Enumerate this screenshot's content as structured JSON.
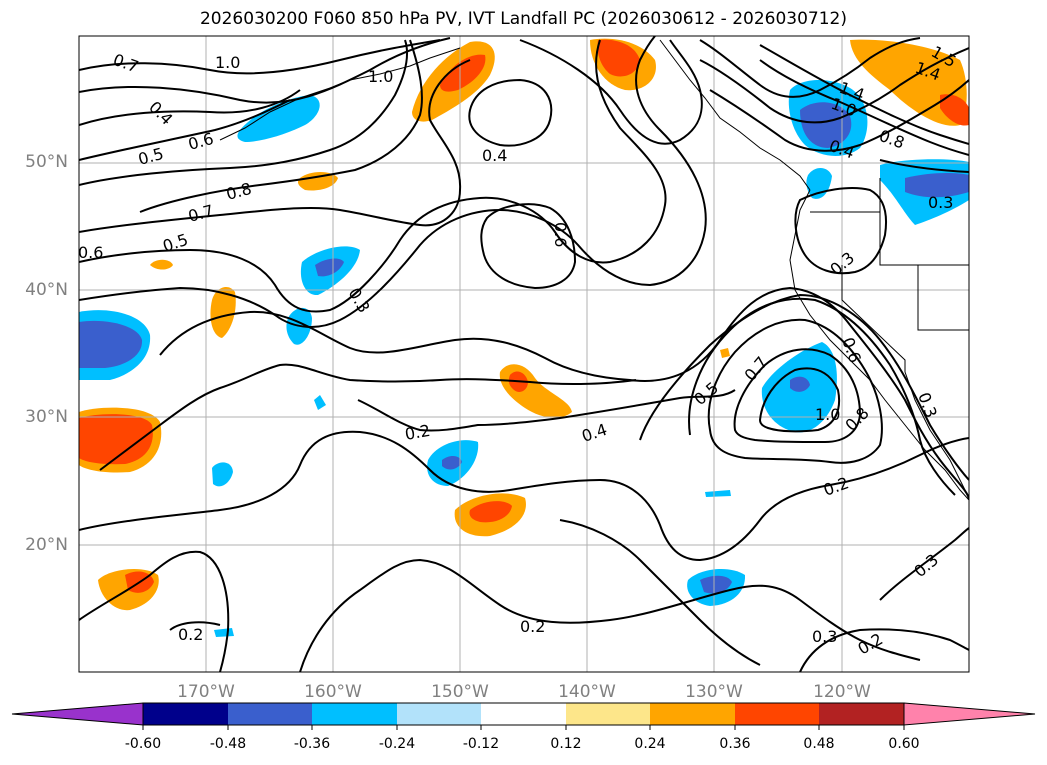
{
  "title": "2026030200 F060 850 hPa PV, IVT Landfall PC (2026030612 - 2026030712)",
  "lat_labels": [
    "50°N",
    "40°N",
    "30°N",
    "20°N"
  ],
  "lon_labels": [
    "170°W",
    "160°W",
    "150°W",
    "140°W",
    "130°W",
    "120°W"
  ],
  "contour_labels": [
    "0.7",
    "1.0",
    "1.0",
    "0.4",
    "0.5",
    "0.6",
    "0.4",
    "0.8",
    "0.7",
    "0.5",
    "0.6",
    "0.6",
    "0.3",
    "1.4",
    "1.0",
    "0.8",
    "0.4",
    "1.5",
    "1.4",
    "0.3",
    "0.3",
    "0.7",
    "0.5",
    "0.6",
    "0.8",
    "1.0",
    "0.3",
    "0.2",
    "0.4",
    "0.2",
    "0.3",
    "0.2",
    "0.2",
    "0.3",
    "0.2"
  ],
  "colorbar": {
    "ticks": [
      "-0.60",
      "-0.48",
      "-0.36",
      "-0.24",
      "-0.12",
      "0.12",
      "0.24",
      "0.36",
      "0.48",
      "0.60"
    ],
    "colors": [
      "#9932cc",
      "#00008b",
      "#3a5fcd",
      "#00bfff",
      "#b2e2fa",
      "#ffffff",
      "#fde68a",
      "#ffa500",
      "#ff4500",
      "#b22222",
      "#ff82ab"
    ]
  },
  "colors": {
    "axis_label": "#808080",
    "contour": "#000000",
    "grid": "#b0b0b0"
  }
}
